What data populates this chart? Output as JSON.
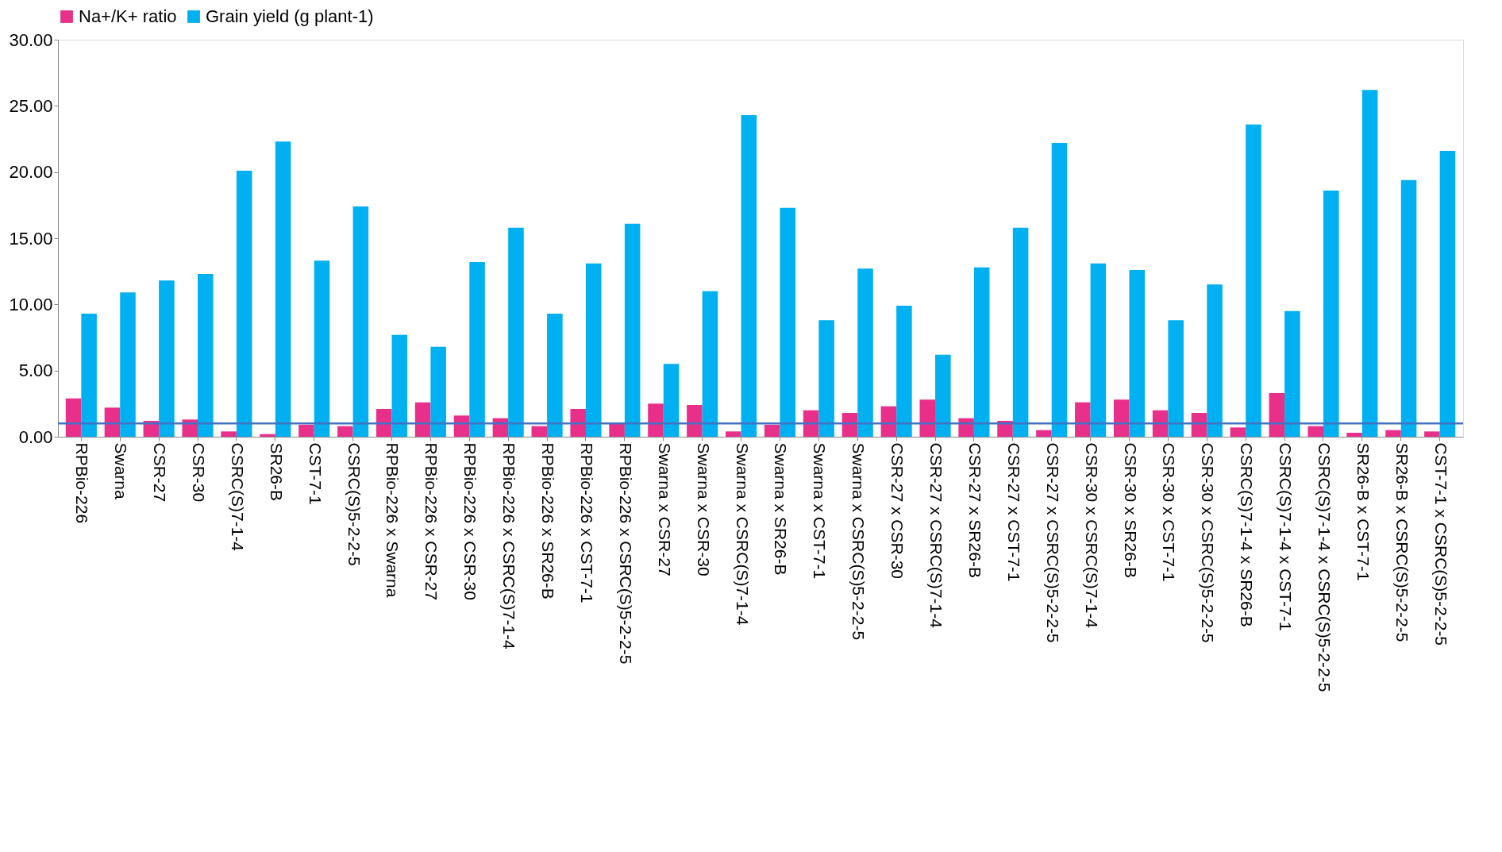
{
  "chart_data": {
    "type": "bar",
    "categories": [
      "RPBio-226",
      "Swarna",
      "CSR-27",
      "CSR-30",
      "CSRC(S)7-1-4",
      "SR26-B",
      "CST-7-1",
      "CSRC(S)5-2-2-5",
      "RPBio-226 x Swarna",
      "RPBio-226 x CSR-27",
      "RPBio-226 x CSR-30",
      "RPBio-226 x CSRC(S)7-1-4",
      "RPBio-226 x SR26-B",
      "RPBio-226 x CST-7-1",
      "RPBio-226 x CSRC(S)5-2-2-5",
      "Swarna x CSR-27",
      "Swarna x CSR-30",
      "Swarna x CSRC(S)7-1-4",
      "Swarna x SR26-B",
      "Swarna x CST-7-1",
      "Swarna x CSRC(S)5-2-2-5",
      "CSR-27 x CSR-30",
      "CSR-27 x CSRC(S)7-1-4",
      "CSR-27 x SR26-B",
      "CSR-27 x CST-7-1",
      "CSR-27 x CSRC(S)5-2-2-5",
      "CSR-30 x CSRC(S)7-1-4",
      "CSR-30 x SR26-B",
      "CSR-30 x CST-7-1",
      "CSR-30 x CSRC(S)5-2-2-5",
      "CSRC(S)7-1-4 x SR26-B",
      "CSRC(S)7-1-4 x CST-7-1",
      "CSRC(S)7-1-4 x CSRC(S)5-2-2-5",
      "SR26-B x CST-7-1",
      "SR26-B x CSRC(S)5-2-2-5",
      "CST-7-1 x CSRC(S)5-2-2-5"
    ],
    "series": [
      {
        "name": "Na+/K+ ratio",
        "color": "#e8308a",
        "values": [
          2.9,
          2.2,
          1.2,
          1.3,
          0.4,
          0.2,
          0.9,
          0.8,
          2.1,
          2.6,
          1.6,
          1.4,
          0.8,
          2.1,
          1.0,
          2.5,
          2.4,
          0.4,
          0.9,
          2.0,
          1.8,
          2.3,
          2.8,
          1.4,
          1.2,
          0.5,
          2.6,
          2.8,
          2.0,
          1.8,
          0.7,
          3.3,
          0.8,
          0.3,
          0.5,
          0.4
        ]
      },
      {
        "name": "Grain yield (g plant-1)",
        "color": "#00b0f0",
        "values": [
          9.3,
          10.9,
          11.8,
          12.3,
          20.1,
          22.3,
          13.3,
          17.4,
          7.7,
          6.8,
          13.2,
          15.8,
          9.3,
          13.1,
          16.1,
          5.5,
          11.0,
          24.3,
          17.3,
          8.8,
          12.7,
          9.9,
          6.2,
          12.8,
          15.8,
          22.2,
          13.1,
          12.6,
          8.8,
          11.5,
          23.6,
          9.5,
          18.6,
          26.2,
          19.4,
          21.6
        ]
      }
    ],
    "ylim": [
      0,
      30
    ],
    "yticks": [
      {
        "value": 0,
        "label": "0.00"
      },
      {
        "value": 5,
        "label": "5.00"
      },
      {
        "value": 10,
        "label": "10.00"
      },
      {
        "value": 15,
        "label": "15.00"
      },
      {
        "value": 20,
        "label": "20.00"
      },
      {
        "value": 25,
        "label": "25.00"
      },
      {
        "value": 30,
        "label": "30.00"
      }
    ],
    "ref_lines": [
      {
        "axis": "y",
        "value": 1,
        "color": "#4472c4"
      }
    ],
    "legend": "top",
    "grid": false
  }
}
